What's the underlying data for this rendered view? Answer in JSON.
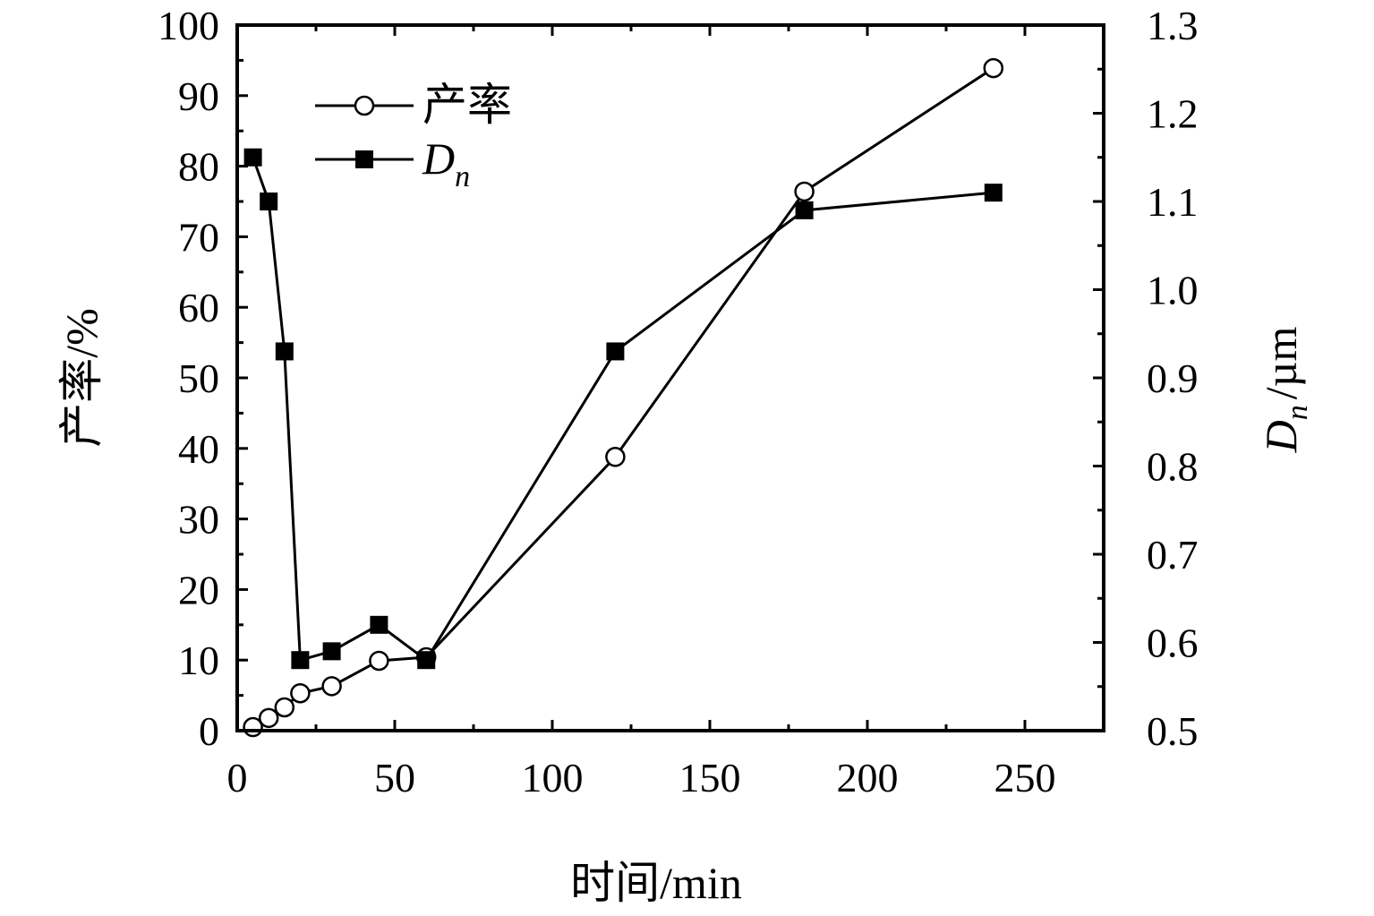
{
  "chart_data": {
    "type": "line",
    "x_axis": {
      "label_main": "时间",
      "label_unit": "/min",
      "range": [
        0,
        275
      ],
      "ticks": [
        0,
        50,
        100,
        150,
        200,
        250
      ],
      "tick_labels": [
        "0",
        "50",
        "100",
        "150",
        "200",
        "250"
      ]
    },
    "y_axis_left": {
      "label_main": "产率",
      "label_unit": "/%",
      "range": [
        0,
        100
      ],
      "ticks": [
        0,
        10,
        20,
        30,
        40,
        50,
        60,
        70,
        80,
        90,
        100
      ],
      "tick_labels": [
        "0",
        "10",
        "20",
        "30",
        "40",
        "50",
        "60",
        "70",
        "80",
        "90",
        "100"
      ]
    },
    "y_axis_right": {
      "label_symbol": "D",
      "label_subscript": "n",
      "label_unit": "/µm",
      "range": [
        0.5,
        1.3
      ],
      "ticks": [
        0.5,
        0.6,
        0.7,
        0.8,
        0.9,
        1.0,
        1.1,
        1.2,
        1.3
      ],
      "tick_labels": [
        "0.5",
        "0.6",
        "0.7",
        "0.8",
        "0.9",
        "1.0",
        "1.1",
        "1.2",
        "1.3"
      ]
    },
    "series": [
      {
        "name": "产率",
        "axis": "left",
        "marker": "open-circle",
        "x": [
          5,
          10,
          15,
          20,
          30,
          45,
          60,
          120,
          180,
          240
        ],
        "y": [
          0.5,
          1.8,
          3.3,
          5.3,
          6.3,
          9.9,
          10.4,
          38.8,
          76.4,
          93.9
        ]
      },
      {
        "name": "D",
        "name_subscript": "n",
        "axis": "right",
        "marker": "filled-square",
        "x": [
          5,
          10,
          15,
          20,
          30,
          45,
          60,
          120,
          180,
          240
        ],
        "y": [
          1.15,
          1.1,
          0.93,
          0.58,
          0.59,
          0.62,
          0.58,
          0.93,
          1.09,
          1.11
        ]
      }
    ],
    "legend_position": "top-left",
    "grid": false
  }
}
